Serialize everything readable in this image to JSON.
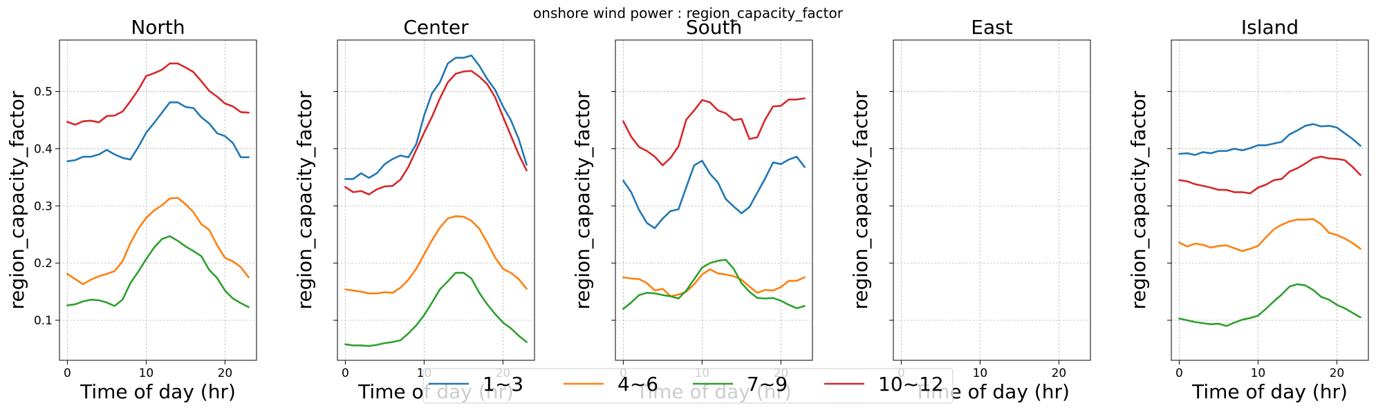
{
  "chart_data": {
    "type": "line",
    "title": "onshore wind power : region_capacity_factor",
    "xlabel": "Time of day (hr)",
    "ylabel": "region_capacity_factor",
    "xlim": [
      -1,
      24
    ],
    "ylim": [
      0.03,
      0.59
    ],
    "xticks": [
      0,
      10,
      20
    ],
    "yticks": [
      0.1,
      0.2,
      0.3,
      0.4,
      0.5
    ],
    "ytick_labels": [
      "0.1",
      "0.2",
      "0.3",
      "0.4",
      "0.5"
    ],
    "sharey": true,
    "grid": true,
    "legend_position": "bottom-center",
    "x": [
      0,
      1,
      2,
      3,
      4,
      5,
      6,
      7,
      8,
      9,
      10,
      11,
      12,
      13,
      14,
      15,
      16,
      17,
      18,
      19,
      20,
      21,
      22,
      23
    ],
    "series_names": [
      "1~3",
      "4~6",
      "7~9",
      "10~12"
    ],
    "series_colors": [
      "#1f77b4",
      "#ff7f0e",
      "#2ca02c",
      "#d62728"
    ],
    "panels": [
      {
        "title": "North",
        "series": [
          {
            "name": "1~3",
            "values": [
              0.378,
              0.38,
              0.386,
              0.386,
              0.39,
              0.398,
              0.39,
              0.384,
              0.381,
              0.403,
              0.428,
              0.445,
              0.463,
              0.481,
              0.481,
              0.473,
              0.471,
              0.455,
              0.444,
              0.427,
              0.422,
              0.41,
              0.385,
              0.385
            ]
          },
          {
            "name": "4~6",
            "values": [
              0.181,
              0.172,
              0.163,
              0.171,
              0.177,
              0.181,
              0.186,
              0.203,
              0.235,
              0.26,
              0.279,
              0.292,
              0.301,
              0.313,
              0.314,
              0.303,
              0.289,
              0.268,
              0.258,
              0.231,
              0.209,
              0.203,
              0.193,
              0.175
            ]
          },
          {
            "name": "7~9",
            "values": [
              0.126,
              0.128,
              0.133,
              0.136,
              0.135,
              0.131,
              0.125,
              0.136,
              0.165,
              0.185,
              0.207,
              0.227,
              0.242,
              0.247,
              0.239,
              0.229,
              0.221,
              0.212,
              0.188,
              0.174,
              0.152,
              0.138,
              0.13,
              0.123
            ]
          },
          {
            "name": "10~12",
            "values": [
              0.447,
              0.442,
              0.448,
              0.449,
              0.446,
              0.457,
              0.458,
              0.465,
              0.483,
              0.503,
              0.527,
              0.532,
              0.538,
              0.549,
              0.549,
              0.542,
              0.534,
              0.518,
              0.501,
              0.491,
              0.479,
              0.474,
              0.464,
              0.463
            ]
          }
        ]
      },
      {
        "title": "Center",
        "series": [
          {
            "name": "1~3",
            "values": [
              0.347,
              0.347,
              0.357,
              0.349,
              0.357,
              0.373,
              0.382,
              0.388,
              0.385,
              0.408,
              0.458,
              0.497,
              0.516,
              0.549,
              0.559,
              0.559,
              0.563,
              0.545,
              0.522,
              0.503,
              0.474,
              0.45,
              0.417,
              0.372
            ]
          },
          {
            "name": "4~6",
            "values": [
              0.154,
              0.152,
              0.15,
              0.147,
              0.147,
              0.149,
              0.148,
              0.157,
              0.171,
              0.19,
              0.215,
              0.24,
              0.262,
              0.278,
              0.282,
              0.281,
              0.274,
              0.26,
              0.236,
              0.21,
              0.19,
              0.183,
              0.172,
              0.155
            ]
          },
          {
            "name": "7~9",
            "values": [
              0.058,
              0.056,
              0.056,
              0.055,
              0.057,
              0.06,
              0.062,
              0.065,
              0.077,
              0.091,
              0.109,
              0.131,
              0.154,
              0.168,
              0.183,
              0.183,
              0.173,
              0.148,
              0.128,
              0.111,
              0.096,
              0.086,
              0.073,
              0.062
            ]
          },
          {
            "name": "10~12",
            "values": [
              0.333,
              0.324,
              0.326,
              0.32,
              0.329,
              0.334,
              0.335,
              0.346,
              0.368,
              0.398,
              0.428,
              0.456,
              0.488,
              0.516,
              0.531,
              0.535,
              0.536,
              0.526,
              0.513,
              0.49,
              0.456,
              0.423,
              0.39,
              0.362
            ]
          }
        ]
      },
      {
        "title": "South",
        "series": [
          {
            "name": "1~3",
            "values": [
              0.344,
              0.324,
              0.293,
              0.27,
              0.261,
              0.278,
              0.291,
              0.294,
              0.333,
              0.371,
              0.379,
              0.356,
              0.341,
              0.312,
              0.299,
              0.287,
              0.298,
              0.323,
              0.348,
              0.376,
              0.373,
              0.381,
              0.386,
              0.368
            ]
          },
          {
            "name": "4~6",
            "values": [
              0.175,
              0.173,
              0.172,
              0.165,
              0.152,
              0.155,
              0.142,
              0.145,
              0.15,
              0.163,
              0.18,
              0.189,
              0.182,
              0.18,
              0.177,
              0.171,
              0.159,
              0.148,
              0.153,
              0.152,
              0.158,
              0.169,
              0.169,
              0.175
            ]
          },
          {
            "name": "7~9",
            "values": [
              0.12,
              0.131,
              0.144,
              0.148,
              0.147,
              0.144,
              0.142,
              0.138,
              0.152,
              0.172,
              0.192,
              0.2,
              0.204,
              0.206,
              0.19,
              0.165,
              0.15,
              0.139,
              0.138,
              0.139,
              0.134,
              0.127,
              0.121,
              0.125
            ]
          },
          {
            "name": "10~12",
            "values": [
              0.448,
              0.421,
              0.403,
              0.396,
              0.386,
              0.371,
              0.384,
              0.404,
              0.451,
              0.467,
              0.485,
              0.481,
              0.467,
              0.462,
              0.45,
              0.452,
              0.417,
              0.42,
              0.451,
              0.474,
              0.475,
              0.486,
              0.486,
              0.488
            ]
          }
        ]
      },
      {
        "title": "East",
        "series": []
      },
      {
        "title": "Island",
        "series": [
          {
            "name": "1~3",
            "values": [
              0.391,
              0.392,
              0.389,
              0.394,
              0.392,
              0.396,
              0.396,
              0.4,
              0.397,
              0.401,
              0.406,
              0.406,
              0.409,
              0.412,
              0.425,
              0.432,
              0.44,
              0.443,
              0.439,
              0.44,
              0.437,
              0.427,
              0.417,
              0.405
            ]
          },
          {
            "name": "4~6",
            "values": [
              0.236,
              0.229,
              0.234,
              0.232,
              0.227,
              0.23,
              0.231,
              0.226,
              0.221,
              0.225,
              0.23,
              0.245,
              0.259,
              0.267,
              0.273,
              0.276,
              0.276,
              0.277,
              0.268,
              0.253,
              0.249,
              0.243,
              0.235,
              0.225
            ]
          },
          {
            "name": "7~9",
            "values": [
              0.103,
              0.1,
              0.097,
              0.095,
              0.093,
              0.094,
              0.09,
              0.096,
              0.101,
              0.104,
              0.108,
              0.12,
              0.133,
              0.145,
              0.159,
              0.163,
              0.161,
              0.153,
              0.141,
              0.136,
              0.127,
              0.121,
              0.113,
              0.105
            ]
          },
          {
            "name": "10~12",
            "values": [
              0.345,
              0.343,
              0.338,
              0.335,
              0.332,
              0.328,
              0.328,
              0.324,
              0.324,
              0.322,
              0.332,
              0.337,
              0.345,
              0.347,
              0.36,
              0.366,
              0.374,
              0.383,
              0.386,
              0.383,
              0.382,
              0.38,
              0.368,
              0.354
            ]
          }
        ]
      }
    ]
  }
}
